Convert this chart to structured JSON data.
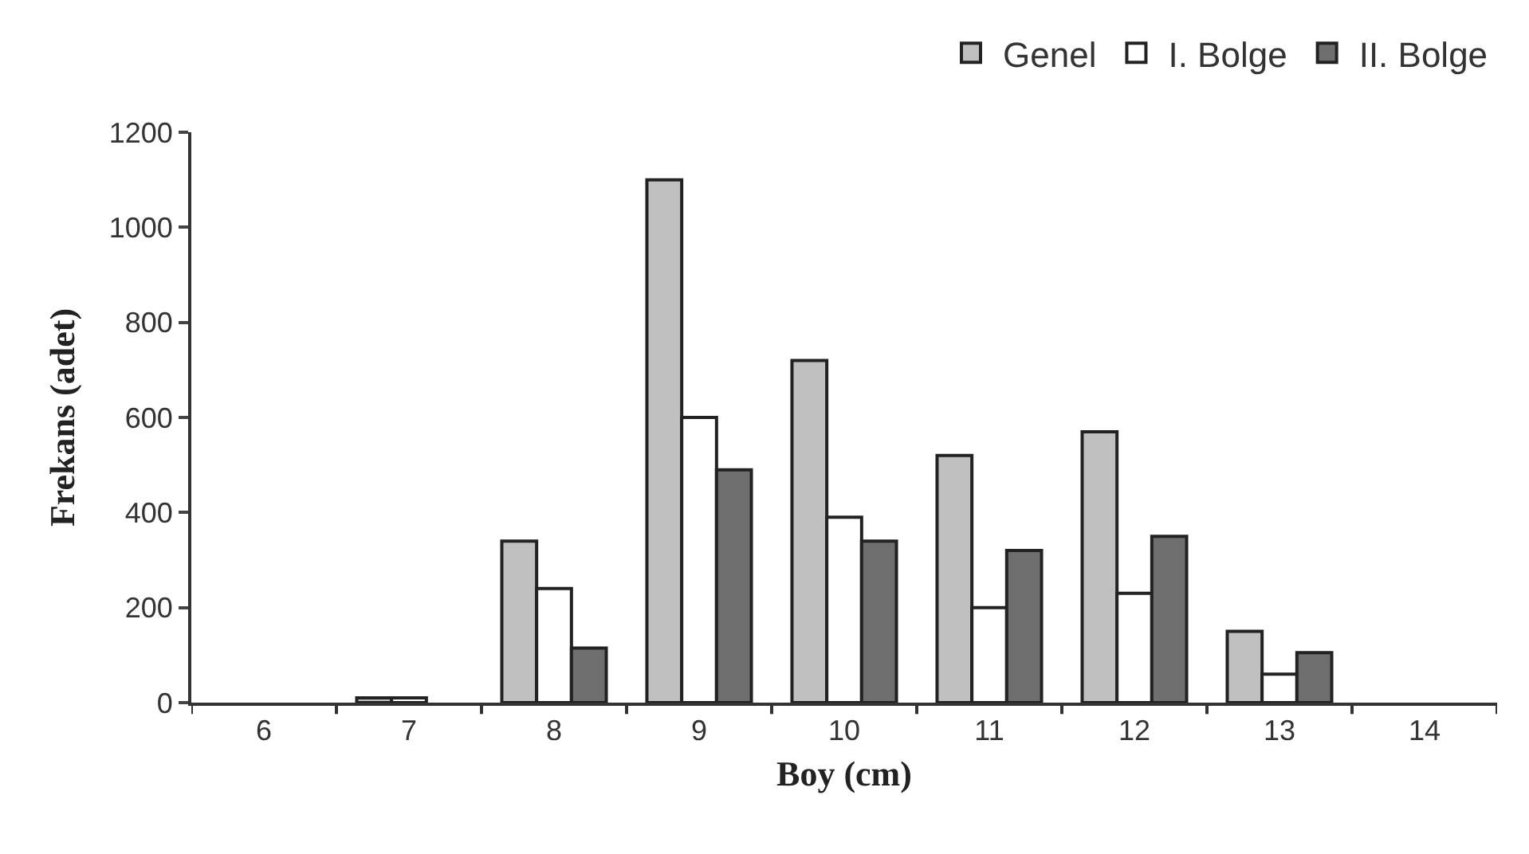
{
  "chart_data": {
    "type": "bar",
    "xlabel": "Boy (cm)",
    "ylabel": "Frekans (adet)",
    "categories": [
      "6",
      "7",
      "8",
      "9",
      "10",
      "11",
      "12",
      "13",
      "14"
    ],
    "series": [
      {
        "name": "Genel",
        "color": "#c0c0c0",
        "values": [
          null,
          10,
          340,
          1100,
          720,
          520,
          570,
          150,
          null
        ]
      },
      {
        "name": "I. Bolge",
        "color": "#ffffff",
        "values": [
          null,
          10,
          240,
          600,
          390,
          200,
          230,
          60,
          null
        ]
      },
      {
        "name": "II. Bolge",
        "color": "#6e6e6e",
        "values": [
          null,
          null,
          115,
          490,
          340,
          320,
          350,
          105,
          null
        ]
      }
    ],
    "ylim": [
      0,
      1200
    ],
    "yticks": [
      0,
      200,
      400,
      600,
      800,
      1000,
      1200
    ],
    "grid": false,
    "legend": "top right"
  }
}
